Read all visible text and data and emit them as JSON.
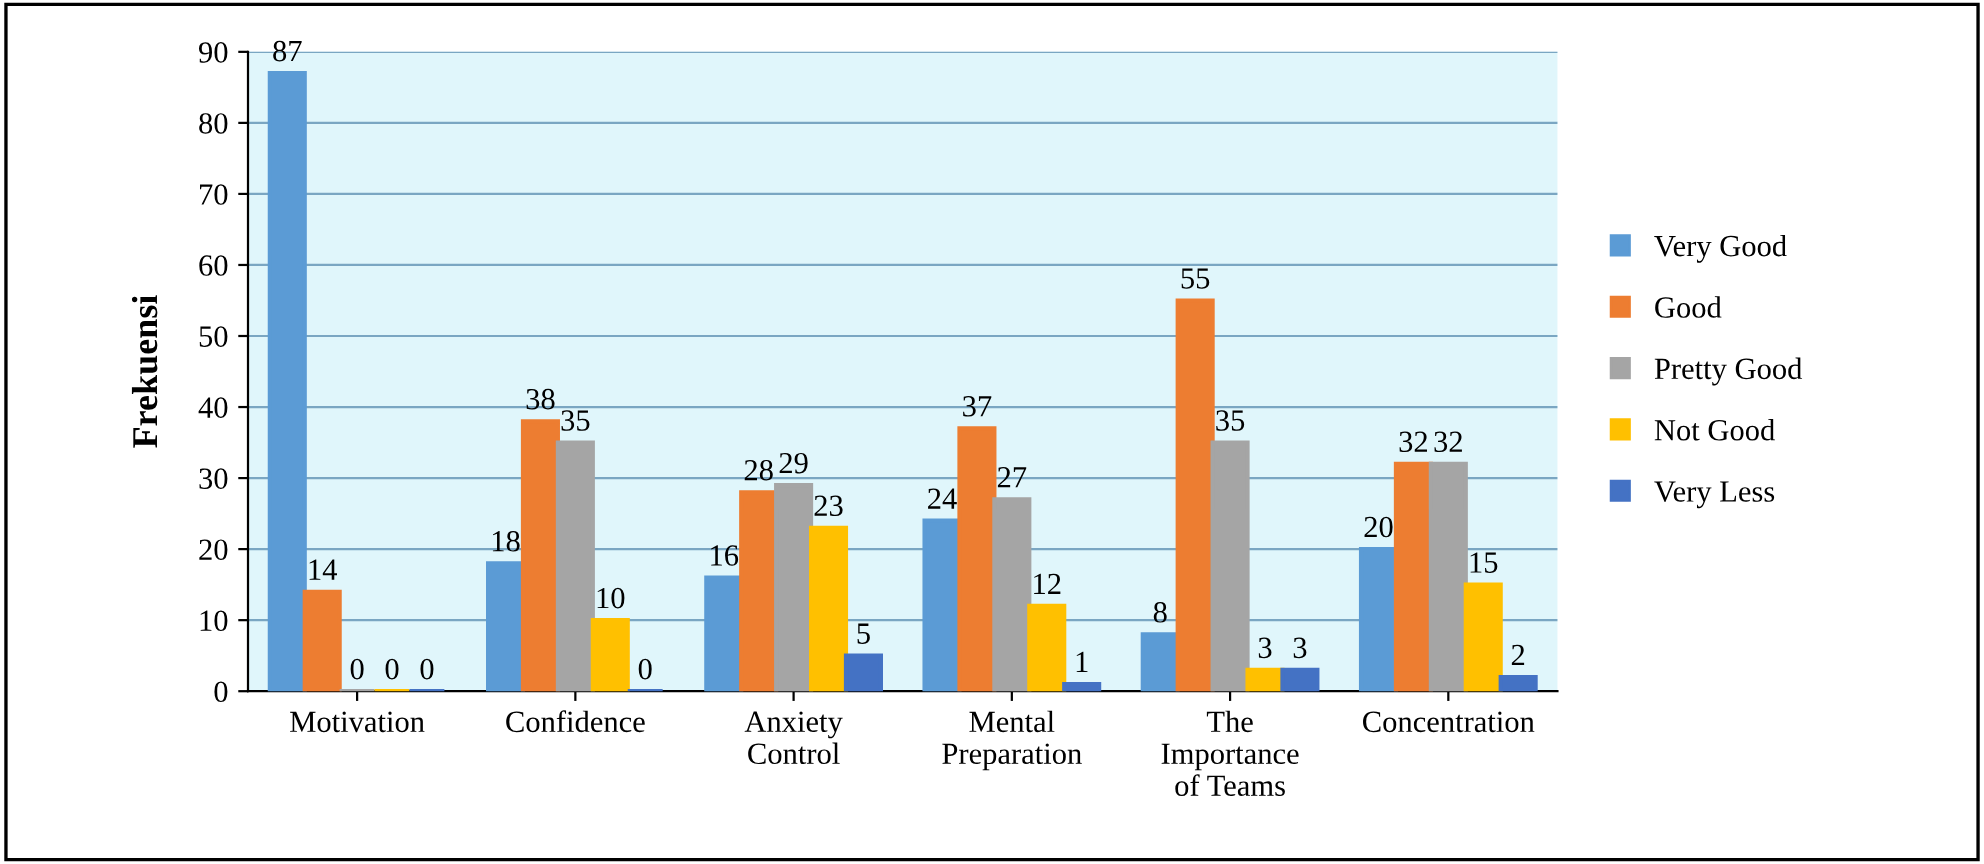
{
  "chart_data": {
    "type": "bar",
    "ylabel": "Frekuensi",
    "categories": [
      "Motivation",
      "Confidence",
      "Anxiety\nControl",
      "Mental\nPreparation",
      "The\nImportance\nof Teams",
      "Concentration"
    ],
    "series": [
      {
        "name": "Very Good",
        "color": "#5b9bd5",
        "values": [
          87,
          18,
          16,
          24,
          8,
          20
        ]
      },
      {
        "name": "Good",
        "color": "#ed7d31",
        "values": [
          14,
          38,
          28,
          37,
          55,
          32
        ]
      },
      {
        "name": "Pretty Good",
        "color": "#a5a5a5",
        "values": [
          0,
          35,
          29,
          27,
          35,
          32
        ]
      },
      {
        "name": "Not Good",
        "color": "#ffc000",
        "values": [
          0,
          10,
          23,
          12,
          3,
          15
        ]
      },
      {
        "name": "Very Less",
        "color": "#4472c4",
        "values": [
          0,
          0,
          5,
          1,
          3,
          2
        ]
      }
    ],
    "ylim": [
      0,
      90
    ],
    "yticks": [
      0,
      10,
      20,
      30,
      40,
      50,
      60,
      70,
      80,
      90
    ],
    "grid": "y",
    "legend": "right",
    "data_labels": true
  }
}
